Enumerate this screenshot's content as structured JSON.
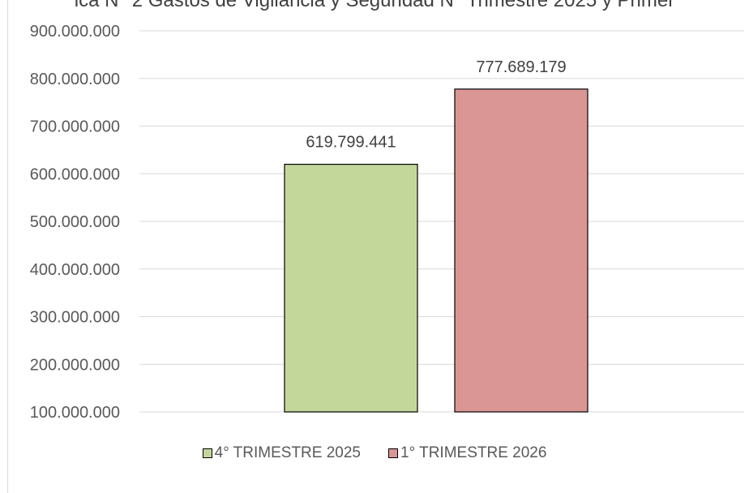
{
  "chart_data": {
    "type": "bar",
    "title": "ica N° 2 Gastos de Vigilancia y Seguridad N° Trimestre 2025 y Primer",
    "categories": [
      "4° TRIMESTRE 2025",
      "1° TRIMESTRE 2026"
    ],
    "values": [
      619799441,
      777689179
    ],
    "data_labels": [
      "619.799.441",
      "777.689.179"
    ],
    "colors": [
      "#c4d79b",
      "#da9694"
    ],
    "ylim": [
      100000000,
      900000000
    ],
    "yticks": [
      100000000,
      200000000,
      300000000,
      400000000,
      500000000,
      600000000,
      700000000,
      800000000,
      900000000
    ],
    "ytick_labels": [
      "100.000.000",
      "200.000.000",
      "300.000.000",
      "400.000.000",
      "500.000.000",
      "600.000.000",
      "700.000.000",
      "800.000.000",
      "900.000.000"
    ],
    "xlabel": "",
    "ylabel": "",
    "grid": true,
    "legend": "bottom"
  }
}
